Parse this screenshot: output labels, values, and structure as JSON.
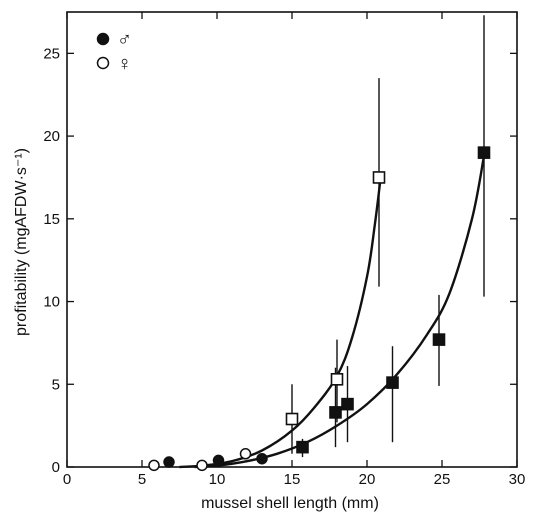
{
  "chart_data": {
    "type": "scatter",
    "xlabel": "mussel shell length (mm)",
    "ylabel": "profitability (mgAFDW·s⁻¹)",
    "xlim": [
      0,
      30
    ],
    "ylim": [
      0,
      27.5
    ],
    "x_ticks": [
      0,
      5,
      10,
      15,
      20,
      25,
      30
    ],
    "y_ticks": [
      0,
      5,
      10,
      15,
      20,
      25
    ],
    "grid": false,
    "legend_position": "top-left",
    "legend": [
      {
        "marker": "filled-circle",
        "label": "♂"
      },
      {
        "marker": "open-circle",
        "label": "♀"
      }
    ],
    "series": [
      {
        "marker": "filled-circle",
        "points": [
          {
            "x": 6.8,
            "y": 0.3
          },
          {
            "x": 10.1,
            "y": 0.4
          },
          {
            "x": 13.0,
            "y": 0.5
          }
        ]
      },
      {
        "marker": "open-circle",
        "points": [
          {
            "x": 5.8,
            "y": 0.1
          },
          {
            "x": 9.0,
            "y": 0.1
          },
          {
            "x": 11.9,
            "y": 0.8
          }
        ]
      },
      {
        "marker": "filled-square",
        "points": [
          {
            "x": 15.7,
            "y": 1.2,
            "err_low": 0.6,
            "err_high": 1.7
          },
          {
            "x": 17.9,
            "y": 3.3,
            "err_low": 1.2,
            "err_high": 6.0
          },
          {
            "x": 18.7,
            "y": 3.8,
            "err_low": 1.5,
            "err_high": 6.1
          },
          {
            "x": 21.7,
            "y": 5.1,
            "err_low": 1.5,
            "err_high": 7.3
          },
          {
            "x": 24.8,
            "y": 7.7,
            "err_low": 4.9,
            "err_high": 10.4
          },
          {
            "x": 27.8,
            "y": 19.0,
            "err_low": 10.3,
            "err_high": 27.3
          }
        ],
        "fit_curve": [
          {
            "x": 8.5,
            "y": 0.0
          },
          {
            "x": 10.0,
            "y": 0.08
          },
          {
            "x": 12.0,
            "y": 0.35
          },
          {
            "x": 14.0,
            "y": 0.8
          },
          {
            "x": 16.0,
            "y": 1.5
          },
          {
            "x": 18.0,
            "y": 2.5
          },
          {
            "x": 20.0,
            "y": 3.8
          },
          {
            "x": 22.0,
            "y": 5.6
          },
          {
            "x": 24.0,
            "y": 8.0
          },
          {
            "x": 25.5,
            "y": 10.5
          },
          {
            "x": 27.0,
            "y": 15.0
          },
          {
            "x": 27.8,
            "y": 18.8
          }
        ]
      },
      {
        "marker": "open-square",
        "points": [
          {
            "x": 15.0,
            "y": 2.9,
            "err_low": 0.8,
            "err_high": 5.0
          },
          {
            "x": 18.0,
            "y": 5.3,
            "err_low": 2.7,
            "err_high": 7.7
          },
          {
            "x": 20.8,
            "y": 17.5,
            "err_low": 10.9,
            "err_high": 23.5
          }
        ],
        "fit_curve": [
          {
            "x": 7.5,
            "y": 0.0
          },
          {
            "x": 9.0,
            "y": 0.08
          },
          {
            "x": 11.0,
            "y": 0.35
          },
          {
            "x": 13.0,
            "y": 1.0
          },
          {
            "x": 15.0,
            "y": 2.2
          },
          {
            "x": 16.5,
            "y": 3.6
          },
          {
            "x": 18.0,
            "y": 5.5
          },
          {
            "x": 19.0,
            "y": 7.8
          },
          {
            "x": 20.0,
            "y": 11.5
          },
          {
            "x": 20.5,
            "y": 14.5
          },
          {
            "x": 20.9,
            "y": 17.4
          }
        ]
      }
    ]
  }
}
